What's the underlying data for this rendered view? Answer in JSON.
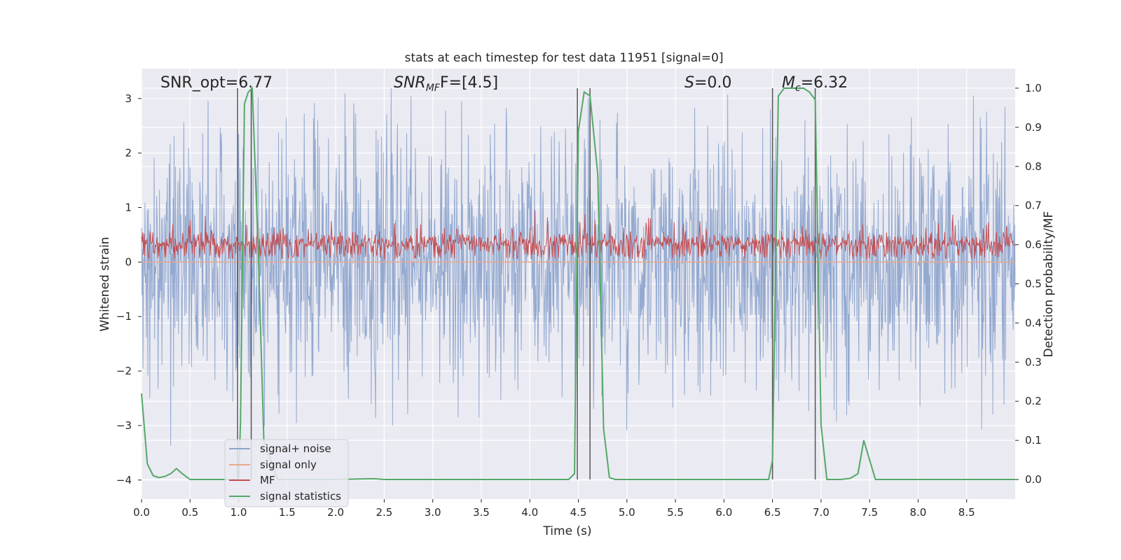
{
  "chart_data": {
    "type": "line",
    "title": "stats at each timestep for test data 11951 [signal=0]",
    "xlabel": "Time (s)",
    "ylabel_left": "Whitened strain",
    "ylabel_right": "Detection probability/MF",
    "xlim": [
      0.0,
      9.0
    ],
    "ylim_left": [
      -4.35,
      3.55
    ],
    "ylim_right": [
      -0.05,
      1.05
    ],
    "grid": true,
    "legend_position": "lower-left",
    "x_ticks": [
      "0.0",
      "0.5",
      "1.0",
      "1.5",
      "2.0",
      "2.5",
      "3.0",
      "3.5",
      "4.0",
      "4.5",
      "5.0",
      "5.5",
      "6.0",
      "6.5",
      "7.0",
      "7.5",
      "8.0",
      "8.5"
    ],
    "y_ticks_left": [
      "3",
      "2",
      "1",
      "0",
      "−1",
      "−2",
      "−3",
      "−4"
    ],
    "y_ticks_right": [
      "1.0",
      "0.9",
      "0.8",
      "0.7",
      "0.6",
      "0.5",
      "0.4",
      "0.3",
      "0.2",
      "0.1",
      "0.0"
    ],
    "annotations": {
      "snr_opt": "SNR_opt=6.77",
      "snr_mf_main": "SNR",
      "snr_mf_sub": "MF",
      "snr_mf_value": "F=[4.5]",
      "s_symbol": "S",
      "s_value": "=0.0",
      "mc_symbol": "M",
      "mc_sub": "c",
      "mc_value": "=6.32"
    },
    "legend": [
      {
        "label": "signal+ noise",
        "color": "#8ea5cd"
      },
      {
        "label": "signal only",
        "color": "#e8a98c"
      },
      {
        "label": "MF",
        "color": "#c44e52"
      },
      {
        "label": "signal statistics",
        "color": "#55a868"
      }
    ],
    "series": [
      {
        "name": "signal+ noise",
        "axis": "left",
        "description_values": "dense noise, approx range",
        "min": -4.0,
        "max": 3.2,
        "color": "#8ea5cd"
      },
      {
        "name": "signal only",
        "axis": "left",
        "value": 0.0,
        "color": "#e8a98c"
      },
      {
        "name": "MF",
        "axis": "left",
        "baseline": 0.0,
        "range": [
          0.0,
          0.95
        ],
        "color": "#c44e52"
      },
      {
        "name": "signal statistics",
        "axis": "right",
        "color": "#55a868",
        "x": [
          0.0,
          0.06,
          0.12,
          0.18,
          0.24,
          0.3,
          0.36,
          0.42,
          0.5,
          0.6,
          0.8,
          1.0,
          1.02,
          1.06,
          1.1,
          1.14,
          1.2,
          1.26,
          1.4,
          2.0,
          2.4,
          2.5,
          3.0,
          4.0,
          4.4,
          4.46,
          4.5,
          4.56,
          4.62,
          4.7,
          4.76,
          4.82,
          4.88,
          5.0,
          6.0,
          6.46,
          6.5,
          6.56,
          6.62,
          6.72,
          6.82,
          6.88,
          6.94,
          7.0,
          7.06,
          7.12,
          7.2,
          7.3,
          7.38,
          7.44,
          7.5,
          7.56,
          7.62,
          8.0,
          8.5,
          9.0
        ],
        "y": [
          0.22,
          0.04,
          0.01,
          0.005,
          0.008,
          0.015,
          0.028,
          0.015,
          0.0,
          0.0,
          0.0,
          0.0,
          0.15,
          0.96,
          0.99,
          1.0,
          0.6,
          0.1,
          0.0,
          0.0,
          0.002,
          0.0,
          0.0,
          0.0,
          0.0,
          0.015,
          0.89,
          0.99,
          0.98,
          0.78,
          0.13,
          0.005,
          0.0,
          0.0,
          0.0,
          0.0,
          0.05,
          0.98,
          1.0,
          1.0,
          1.0,
          0.99,
          0.97,
          0.14,
          0.0,
          0.0,
          0.0,
          0.003,
          0.015,
          0.1,
          0.05,
          0.0,
          0.0,
          0.0,
          0.0,
          0.0
        ]
      }
    ],
    "vertical_lines_x": [
      0.99,
      1.13,
      4.49,
      4.62,
      6.5,
      6.94
    ]
  }
}
